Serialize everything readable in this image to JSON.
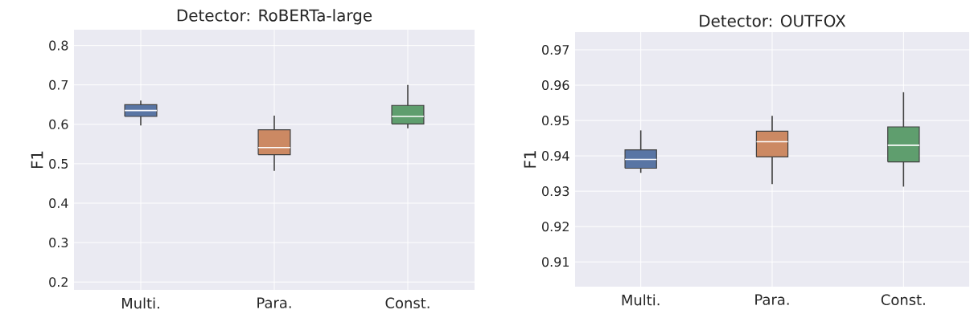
{
  "chart_data": [
    {
      "type": "box",
      "title": "Detector: RoBERTa-large",
      "ylabel": "F1",
      "categories": [
        "Multi.",
        "Para.",
        "Const."
      ],
      "colors": [
        "#5975a4",
        "#cc8963",
        "#5f9e6e"
      ],
      "boxes": [
        {
          "low": 0.597,
          "q1": 0.62,
          "median": 0.635,
          "q3": 0.65,
          "high": 0.66
        },
        {
          "low": 0.482,
          "q1": 0.523,
          "median": 0.541,
          "q3": 0.586,
          "high": 0.622
        },
        {
          "low": 0.59,
          "q1": 0.601,
          "median": 0.62,
          "q3": 0.648,
          "high": 0.7
        }
      ],
      "ylim": [
        0.18,
        0.84
      ],
      "yticks": [
        0.2,
        0.3,
        0.4,
        0.5,
        0.6,
        0.7,
        0.8
      ],
      "grid": true
    },
    {
      "type": "box",
      "title": "Detector: OUTFOX",
      "ylabel": "F1",
      "categories": [
        "Multi.",
        "Para.",
        "Const."
      ],
      "colors": [
        "#5975a4",
        "#cc8963",
        "#5f9e6e"
      ],
      "boxes": [
        {
          "low": 0.9352,
          "q1": 0.9365,
          "median": 0.939,
          "q3": 0.9417,
          "high": 0.9472
        },
        {
          "low": 0.932,
          "q1": 0.9397,
          "median": 0.944,
          "q3": 0.947,
          "high": 0.9513
        },
        {
          "low": 0.9313,
          "q1": 0.9383,
          "median": 0.943,
          "q3": 0.9482,
          "high": 0.958
        }
      ],
      "ylim": [
        0.903,
        0.975
      ],
      "yticks": [
        0.91,
        0.92,
        0.93,
        0.94,
        0.95,
        0.96,
        0.97
      ],
      "grid": true
    }
  ]
}
